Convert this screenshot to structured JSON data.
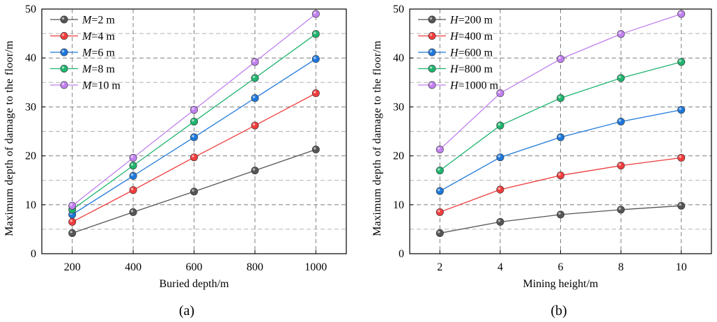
{
  "chart_data": [
    {
      "type": "line",
      "panel_label": "(a)",
      "xlabel": "Buried depth/m",
      "ylabel": "Maximum depth of damage to the floor/m",
      "x": [
        200,
        400,
        600,
        800,
        1000
      ],
      "xticks": [
        "200",
        "400",
        "600",
        "800",
        "1000"
      ],
      "xlim": [
        100,
        1100
      ],
      "ylim": [
        0,
        50
      ],
      "yticks": [
        "0",
        "10",
        "20",
        "30",
        "40",
        "50"
      ],
      "grid": true,
      "legend_position": "top-left",
      "series": [
        {
          "var": "M",
          "rest": "=2 m",
          "color": "#555555",
          "values": [
            4.2,
            8.5,
            12.7,
            17.0,
            21.3
          ]
        },
        {
          "var": "M",
          "rest": "=4 m",
          "color": "#f03c3c",
          "values": [
            6.5,
            13.0,
            19.7,
            26.2,
            32.8
          ]
        },
        {
          "var": "M",
          "rest": "=6 m",
          "color": "#1e78dc",
          "values": [
            8.0,
            15.9,
            23.8,
            31.8,
            39.8
          ]
        },
        {
          "var": "M",
          "rest": "=8 m",
          "color": "#1fb46e",
          "values": [
            9.0,
            18.0,
            27.0,
            35.9,
            44.9
          ]
        },
        {
          "var": "M",
          "rest": "=10 m",
          "color": "#c080f0",
          "values": [
            9.8,
            19.6,
            29.4,
            39.2,
            49.0
          ]
        }
      ]
    },
    {
      "type": "line",
      "panel_label": "(b)",
      "xlabel": "Mining height/m",
      "ylabel": "Maximum depth of damage to the floor/m",
      "x": [
        2,
        4,
        6,
        8,
        10
      ],
      "xticks": [
        "2",
        "4",
        "6",
        "8",
        "10"
      ],
      "xlim": [
        1,
        11
      ],
      "ylim": [
        0,
        50
      ],
      "yticks": [
        "0",
        "10",
        "20",
        "30",
        "40",
        "50"
      ],
      "grid": true,
      "legend_position": "top-left",
      "series": [
        {
          "var": "H",
          "rest": "=200 m",
          "color": "#555555",
          "values": [
            4.2,
            6.5,
            8.0,
            9.0,
            9.8
          ]
        },
        {
          "var": "H",
          "rest": "=400 m",
          "color": "#f03c3c",
          "values": [
            8.5,
            13.1,
            16.0,
            18.0,
            19.6
          ]
        },
        {
          "var": "H",
          "rest": "=600 m",
          "color": "#1e78dc",
          "values": [
            12.8,
            19.7,
            23.8,
            27.0,
            29.4
          ]
        },
        {
          "var": "H",
          "rest": "=800 m",
          "color": "#1fb46e",
          "values": [
            17.0,
            26.2,
            31.8,
            35.9,
            39.2
          ]
        },
        {
          "var": "H",
          "rest": "=1000 m",
          "color": "#c080f0",
          "values": [
            21.3,
            32.8,
            39.8,
            44.9,
            49.0
          ]
        }
      ]
    }
  ]
}
